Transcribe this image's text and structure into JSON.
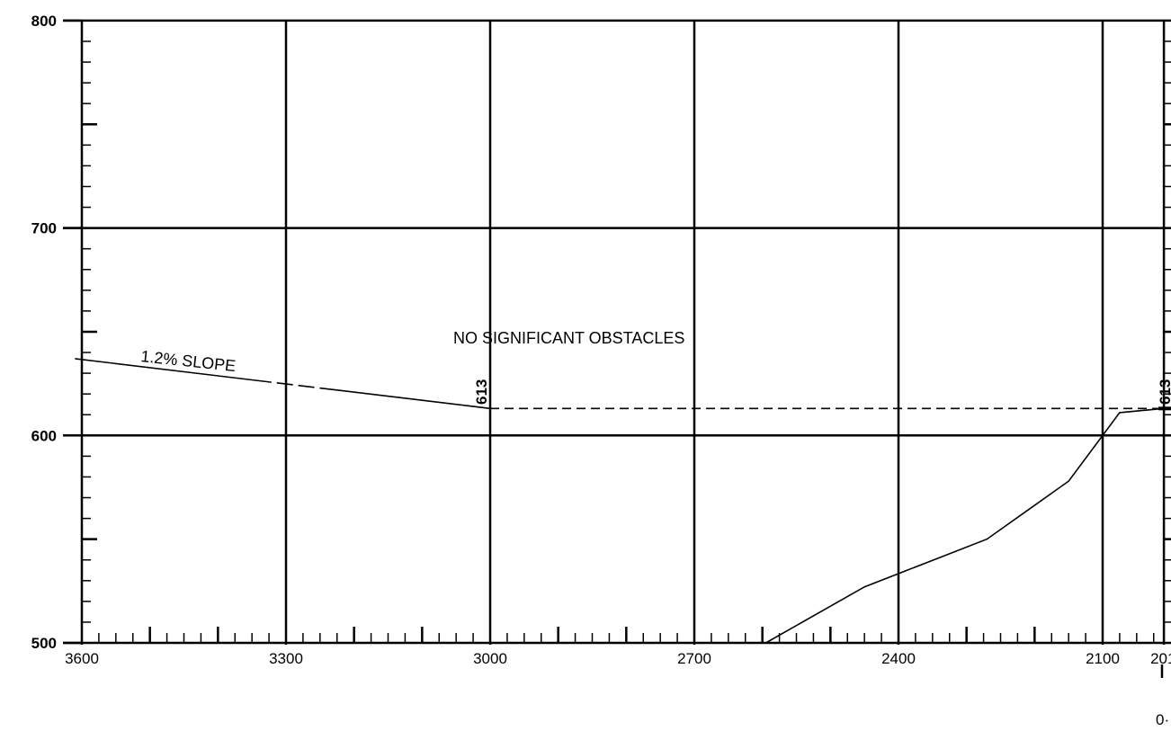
{
  "chart_data": {
    "type": "line",
    "title": "",
    "xlabel": "",
    "ylabel": "",
    "x_reversed": true,
    "xlim": [
      3600,
      2010
    ],
    "ylim": [
      500,
      800
    ],
    "x_tick_labels": [
      "3600",
      "3300",
      "3000",
      "2700",
      "2400",
      "2100",
      "201"
    ],
    "y_tick_labels": [
      "800",
      "700",
      "600",
      "500"
    ],
    "grid": true,
    "series": [
      {
        "style": "solid-dash",
        "points": [
          [
            3610,
            637
          ],
          [
            3000,
            613
          ]
        ]
      },
      {
        "style": "dashed",
        "points": [
          [
            3000,
            613
          ],
          [
            2010,
            613
          ]
        ]
      },
      {
        "style": "solid",
        "points": [
          [
            2595,
            500
          ],
          [
            2450,
            527
          ],
          [
            2270,
            550
          ],
          [
            2150,
            578
          ],
          [
            2075,
            611
          ],
          [
            2010,
            613
          ]
        ]
      }
    ],
    "annotations": {
      "slope_label": "1.2% SLOPE",
      "obstacle_note": "NO SIGNIFICANT OBSTACLES",
      "elevation_threshold": "613",
      "elevation_right": "613",
      "station_fragment": "0·"
    }
  }
}
